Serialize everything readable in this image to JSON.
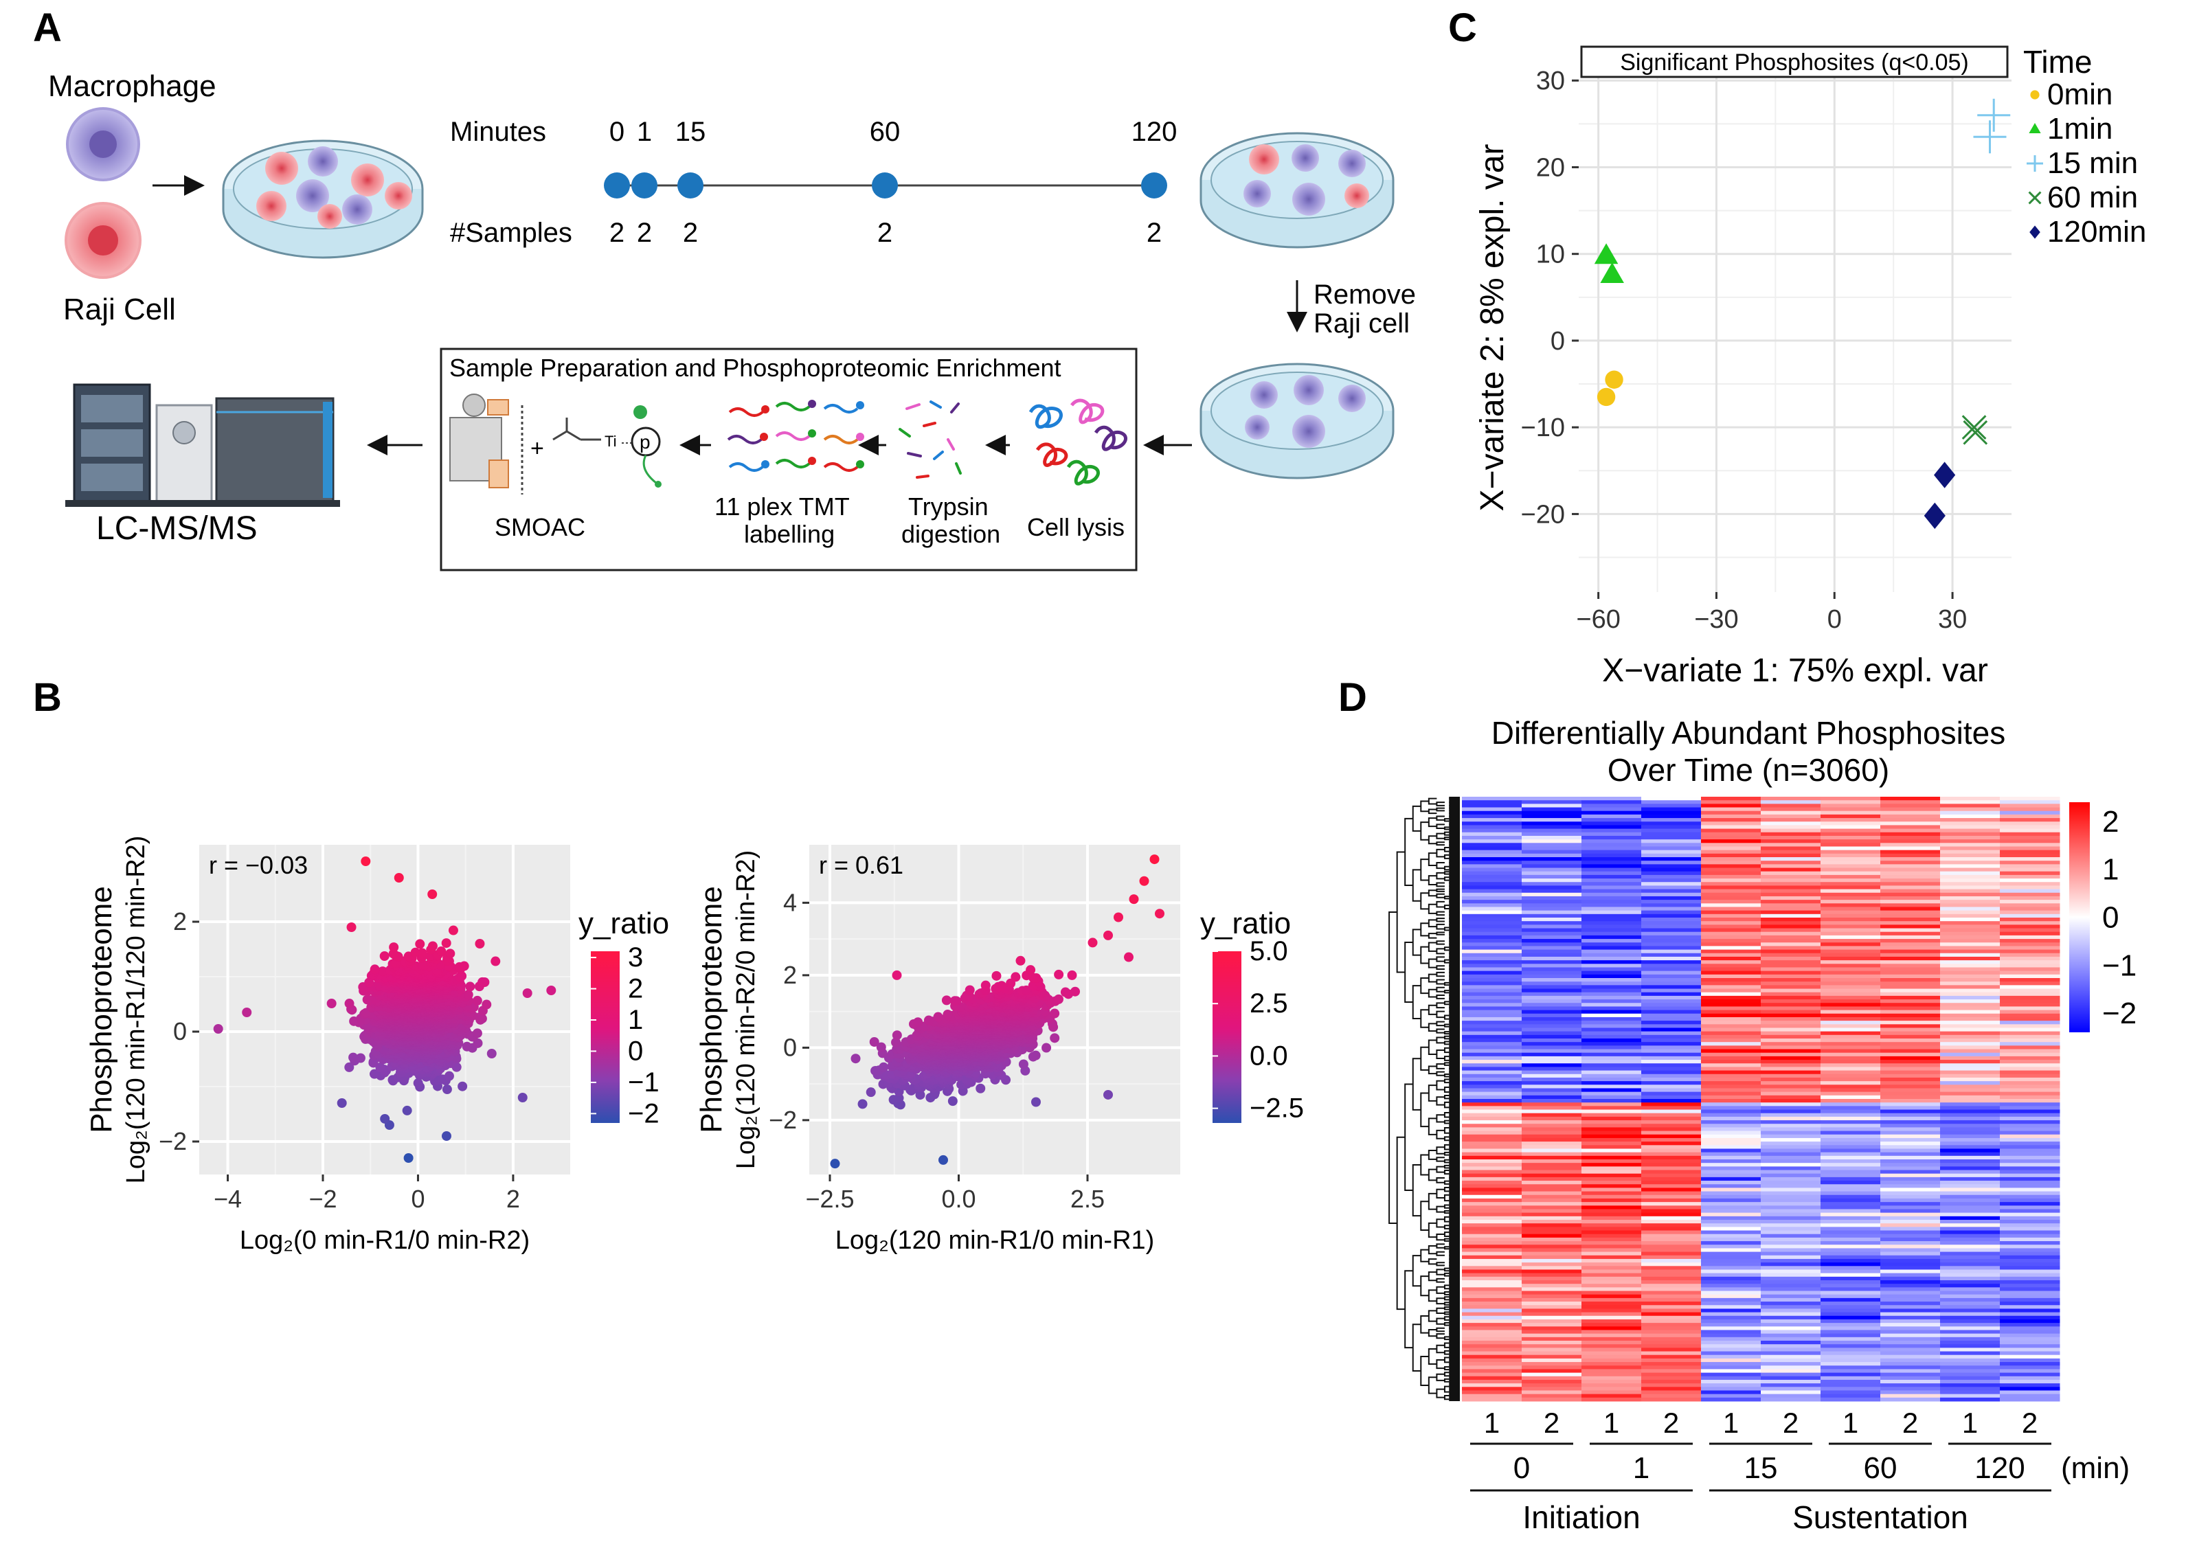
{
  "panels": {
    "a": {
      "letter": "A",
      "macrophage_label": "Macrophage",
      "raji_label": "Raji Cell",
      "minutes_label": "Minutes",
      "samples_label": "#Samples",
      "timepoints": [
        "0",
        "1",
        "15",
        "60",
        "120"
      ],
      "sample_counts": [
        "2",
        "2",
        "2",
        "2",
        "2"
      ],
      "remove_label_line1": "Remove",
      "remove_label_line2": "Raji cell",
      "prep_box_title": "Sample Preparation and Phosphoproteomic Enrichment",
      "smoac_label": "SMOAC",
      "tmt_line1": "11 plex TMT",
      "tmt_line2": "labelling",
      "trypsin_line1": "Trypsin",
      "trypsin_line2": "digestion",
      "lysis_label": "Cell lysis",
      "lcms_label": "LC-MS/MS",
      "ti_label": "Ti",
      "p_label": "p"
    },
    "b": {
      "letter": "B"
    },
    "c": {
      "letter": "C"
    },
    "d": {
      "letter": "D",
      "title_line1": "Differentially Abundant Phosphosites",
      "title_line2": "Over Time (n=3060)",
      "replicate_labels": [
        "1",
        "2",
        "1",
        "2",
        "1",
        "2",
        "1",
        "2",
        "1",
        "2"
      ],
      "time_labels": [
        "0",
        "1",
        "15",
        "60",
        "120"
      ],
      "unit_label": "(min)",
      "group_initiation": "Initiation",
      "group_sustentation": "Sustentation"
    }
  },
  "chart_data": [
    {
      "id": "B-left",
      "type": "scatter",
      "annotation": "r = −0.03",
      "ylabel_line1": "Phosphoproteome",
      "ylabel_line2": "Log₂(120 min-R1/120 min-R2)",
      "xlabel": "Log₂(0 min-R1/0 min-R2)",
      "xlim": [
        -4.6,
        3.2
      ],
      "ylim": [
        -2.6,
        3.4
      ],
      "xticks": [
        -4,
        -2,
        0,
        2
      ],
      "xtick_labels": [
        "−4",
        "−2",
        "0",
        "2"
      ],
      "yticks": [
        -2,
        0,
        2
      ],
      "ytick_labels": [
        "−2",
        "0",
        "2"
      ],
      "color_legend": {
        "title": "y_ratio",
        "ticks": [
          3,
          2,
          1,
          0,
          -1,
          -2
        ],
        "tick_labels": [
          "3",
          "2",
          "1",
          "0",
          "−1",
          "−2"
        ],
        "range": [
          -2.3,
          3.2
        ]
      },
      "cloud": {
        "center": [
          0,
          0.3
        ],
        "sd": [
          0.45,
          0.45
        ],
        "n": 2600
      },
      "points": [
        {
          "x": -1.1,
          "y": 3.1
        },
        {
          "x": -0.4,
          "y": 2.8
        },
        {
          "x": 0.3,
          "y": 2.5
        },
        {
          "x": -4.2,
          "y": 0.05
        },
        {
          "x": -3.6,
          "y": 0.35
        },
        {
          "x": 2.8,
          "y": 0.75
        },
        {
          "x": 2.3,
          "y": 0.7
        },
        {
          "x": -0.2,
          "y": -2.3
        },
        {
          "x": 1.4,
          "y": 0.9
        },
        {
          "x": 1.55,
          "y": -0.4
        },
        {
          "x": 2.2,
          "y": -1.2
        },
        {
          "x": -1.6,
          "y": -1.3
        },
        {
          "x": 0.6,
          "y": -1.9
        },
        {
          "x": -0.6,
          "y": -1.7
        },
        {
          "x": 1.3,
          "y": 1.6
        },
        {
          "x": -1.4,
          "y": 1.9
        }
      ]
    },
    {
      "id": "B-right",
      "type": "scatter",
      "annotation": "r = 0.61",
      "ylabel_line1": "Phosphoproteome",
      "ylabel_line2": "Log₂(120 min-R2/0 min-R2)",
      "xlabel": "Log₂(120 min-R1/0 min-R1)",
      "xlim": [
        -2.9,
        4.3
      ],
      "ylim": [
        -3.5,
        5.6
      ],
      "xticks": [
        -2.5,
        0.0,
        2.5
      ],
      "xtick_labels": [
        "−2.5",
        "0.0",
        "2.5"
      ],
      "yticks": [
        -2,
        0,
        2,
        4
      ],
      "ytick_labels": [
        "−2",
        "0",
        "2",
        "4"
      ],
      "color_legend": {
        "title": "y_ratio",
        "ticks": [
          5.0,
          2.5,
          0.0,
          -2.5
        ],
        "tick_labels": [
          "5.0",
          "2.5",
          "0.0",
          "−2.5"
        ],
        "range": [
          -3.2,
          5.0
        ]
      },
      "cloud": {
        "center": [
          0.3,
          0.3
        ],
        "sd": [
          0.6,
          0.55
        ],
        "corr": 0.61,
        "n": 2600
      },
      "points": [
        {
          "x": 3.8,
          "y": 5.2
        },
        {
          "x": 3.6,
          "y": 4.6
        },
        {
          "x": 3.9,
          "y": 3.7
        },
        {
          "x": 3.4,
          "y": 4.1
        },
        {
          "x": 3.1,
          "y": 3.6
        },
        {
          "x": 2.9,
          "y": 3.1
        },
        {
          "x": 2.6,
          "y": 2.9
        },
        {
          "x": -2.4,
          "y": -3.2
        },
        {
          "x": -0.3,
          "y": -3.1
        },
        {
          "x": 2.9,
          "y": -1.3
        },
        {
          "x": 1.5,
          "y": -1.5
        },
        {
          "x": -1.2,
          "y": 2.0
        },
        {
          "x": 3.3,
          "y": 2.5
        },
        {
          "x": -2.0,
          "y": -0.3
        },
        {
          "x": 2.2,
          "y": 2.0
        },
        {
          "x": 1.2,
          "y": 2.4
        }
      ]
    },
    {
      "id": "C",
      "type": "scatter",
      "title": "Significant Phosphosites (q<0.05)",
      "xlabel": "X−variate 1: 75% expl. var",
      "ylabel": "X−variate 2: 8% expl. var",
      "xlim": [
        -65,
        45
      ],
      "ylim": [
        -29,
        32
      ],
      "xticks": [
        -60,
        -30,
        0,
        30
      ],
      "xtick_labels": [
        "−60",
        "−30",
        "0",
        "30"
      ],
      "yticks": [
        30,
        20,
        10,
        0,
        -10,
        -20
      ],
      "ytick_labels": [
        "30",
        "20",
        "10",
        "0",
        "−10",
        "−20"
      ],
      "legend_title": "Time",
      "series": [
        {
          "name": "0min",
          "color": "#F5C518",
          "marker": "circle",
          "points": [
            [
              -56,
              -4.5
            ],
            [
              -58,
              -6.5
            ]
          ]
        },
        {
          "name": "1min",
          "color": "#1FCB1F",
          "marker": "triangle",
          "points": [
            [
              -58,
              9.8
            ],
            [
              -56.5,
              7.6
            ]
          ]
        },
        {
          "name": "15 min",
          "color": "#7EC8EE",
          "marker": "plus",
          "points": [
            [
              40.5,
              26
            ],
            [
              39.5,
              23.5
            ]
          ]
        },
        {
          "name": "60 min",
          "color": "#2E8B3A",
          "marker": "x",
          "points": [
            [
              35.5,
              -10
            ],
            [
              35.8,
              -10.6
            ]
          ]
        },
        {
          "name": "120min",
          "color": "#0D1478",
          "marker": "diamond",
          "points": [
            [
              28,
              -15.5
            ],
            [
              25.5,
              -20.2
            ]
          ]
        }
      ]
    },
    {
      "id": "D",
      "type": "heatmap",
      "rows": 3060,
      "columns": [
        "0-1",
        "0-2",
        "1-1",
        "1-2",
        "15-1",
        "15-2",
        "60-1",
        "60-2",
        "120-1",
        "120-2"
      ],
      "cluster_split_fraction": 0.505,
      "cluster1_mean": [
        -1.3,
        -1.3,
        -1.4,
        -1.4,
        1.4,
        1.3,
        1.1,
        1.2,
        0.6,
        0.9
      ],
      "cluster2_mean": [
        1.2,
        1.2,
        1.4,
        1.4,
        -0.8,
        -0.8,
        -1.0,
        -1.0,
        -1.1,
        -1.1
      ],
      "color_scale": {
        "ticks": [
          2,
          1,
          0,
          -1,
          -2
        ],
        "tick_labels": [
          "2",
          "1",
          "0",
          "−1",
          "−2"
        ],
        "range": [
          -2.4,
          2.4
        ],
        "low": "#0000FF",
        "mid": "#FFFFFF",
        "high": "#FF0000"
      }
    }
  ]
}
